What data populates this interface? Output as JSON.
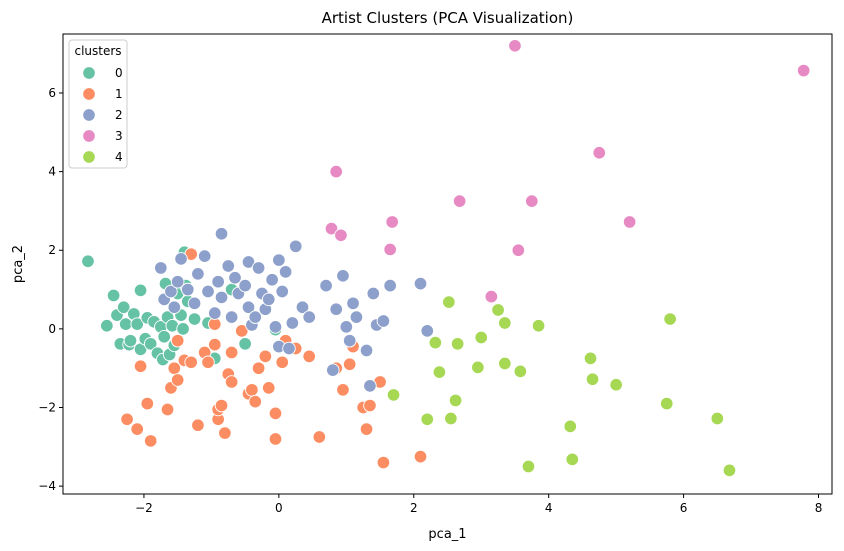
{
  "chart_data": {
    "type": "scatter",
    "title": "Artist Clusters (PCA Visualization)",
    "xlabel": "pca_1",
    "ylabel": "pca_2",
    "xlim": [
      -3.2,
      8.2
    ],
    "ylim": [
      -4.2,
      7.5
    ],
    "x_ticks": [
      -2,
      0,
      2,
      4,
      6,
      8
    ],
    "y_ticks": [
      -4,
      -2,
      0,
      2,
      4,
      6
    ],
    "x_tick_labels": [
      "−2",
      "0",
      "2",
      "4",
      "6",
      "8"
    ],
    "y_tick_labels": [
      "−4",
      "−2",
      "0",
      "2",
      "4",
      "6"
    ],
    "grid": false,
    "legend": {
      "title": "clusters",
      "position": "top-left"
    },
    "series": [
      {
        "name": "0",
        "color": "#66c2a5",
        "points": [
          [
            -2.83,
            1.72
          ],
          [
            -2.55,
            0.08
          ],
          [
            -2.45,
            0.85
          ],
          [
            -2.4,
            0.35
          ],
          [
            -2.35,
            -0.38
          ],
          [
            -2.3,
            0.55
          ],
          [
            -2.27,
            0.12
          ],
          [
            -2.22,
            -0.4
          ],
          [
            -2.2,
            -0.3
          ],
          [
            -2.15,
            0.38
          ],
          [
            -2.1,
            0.12
          ],
          [
            -2.05,
            -0.52
          ],
          [
            -2.05,
            0.98
          ],
          [
            -1.98,
            -0.25
          ],
          [
            -1.95,
            0.28
          ],
          [
            -1.9,
            -0.38
          ],
          [
            -1.85,
            0.18
          ],
          [
            -1.8,
            -0.62
          ],
          [
            -1.75,
            0.05
          ],
          [
            -1.72,
            -0.78
          ],
          [
            -1.7,
            -0.2
          ],
          [
            -1.68,
            1.15
          ],
          [
            -1.65,
            0.3
          ],
          [
            -1.62,
            -0.65
          ],
          [
            -1.58,
            0.08
          ],
          [
            -1.55,
            -0.42
          ],
          [
            -1.5,
            0.9
          ],
          [
            -1.45,
            0.35
          ],
          [
            -1.42,
            0.0
          ],
          [
            -1.4,
            1.95
          ],
          [
            -1.38,
            1.1
          ],
          [
            -1.35,
            0.7
          ],
          [
            -1.25,
            0.25
          ],
          [
            -1.05,
            0.15
          ],
          [
            -0.95,
            -0.75
          ],
          [
            -0.7,
            1.0
          ],
          [
            -0.5,
            -0.38
          ],
          [
            -0.05,
            -0.02
          ]
        ]
      },
      {
        "name": "1",
        "color": "#fc8d62",
        "points": [
          [
            -2.1,
            -2.55
          ],
          [
            -2.05,
            -0.95
          ],
          [
            -1.95,
            -1.9
          ],
          [
            -1.9,
            -2.85
          ],
          [
            -1.65,
            -2.05
          ],
          [
            -1.6,
            -1.5
          ],
          [
            -1.55,
            -1.0
          ],
          [
            -1.5,
            -0.3
          ],
          [
            -1.5,
            -1.3
          ],
          [
            -1.4,
            -0.8
          ],
          [
            -1.3,
            -0.85
          ],
          [
            -1.2,
            -2.45
          ],
          [
            -1.1,
            -0.6
          ],
          [
            -1.05,
            -0.85
          ],
          [
            -0.95,
            -0.4
          ],
          [
            -0.95,
            0.12
          ],
          [
            -0.9,
            -2.3
          ],
          [
            -0.9,
            -2.05
          ],
          [
            -0.85,
            -1.95
          ],
          [
            -0.8,
            -2.65
          ],
          [
            -0.75,
            -1.15
          ],
          [
            -0.7,
            -0.6
          ],
          [
            -0.7,
            -1.35
          ],
          [
            -0.55,
            -0.05
          ],
          [
            -0.45,
            -1.65
          ],
          [
            -0.4,
            -1.55
          ],
          [
            -0.35,
            -1.85
          ],
          [
            -0.3,
            -1.0
          ],
          [
            -0.2,
            -0.7
          ],
          [
            -0.15,
            -1.5
          ],
          [
            -0.05,
            -2.15
          ],
          [
            -0.05,
            -2.8
          ],
          [
            0.05,
            -0.85
          ],
          [
            0.1,
            -0.3
          ],
          [
            0.25,
            -0.5
          ],
          [
            0.45,
            -0.7
          ],
          [
            0.6,
            -2.75
          ],
          [
            0.85,
            -1.0
          ],
          [
            0.95,
            -1.55
          ],
          [
            1.05,
            -0.9
          ],
          [
            1.1,
            -0.45
          ],
          [
            1.25,
            -2.0
          ],
          [
            1.3,
            -2.55
          ],
          [
            1.35,
            -1.95
          ],
          [
            1.5,
            -1.35
          ],
          [
            1.55,
            -3.4
          ],
          [
            2.1,
            -3.25
          ],
          [
            -2.25,
            -2.3
          ],
          [
            -1.3,
            1.9
          ]
        ]
      },
      {
        "name": "2",
        "color": "#8da0cb",
        "points": [
          [
            -1.75,
            1.55
          ],
          [
            -1.7,
            0.75
          ],
          [
            -1.6,
            0.95
          ],
          [
            -1.5,
            1.2
          ],
          [
            -1.45,
            1.78
          ],
          [
            -1.35,
            1.0
          ],
          [
            -1.25,
            0.65
          ],
          [
            -1.2,
            1.4
          ],
          [
            -1.1,
            1.85
          ],
          [
            -1.05,
            0.95
          ],
          [
            -0.95,
            0.4
          ],
          [
            -0.9,
            1.2
          ],
          [
            -0.85,
            0.8
          ],
          [
            -0.85,
            2.42
          ],
          [
            -0.75,
            1.6
          ],
          [
            -0.7,
            0.3
          ],
          [
            -0.65,
            1.3
          ],
          [
            -0.6,
            0.9
          ],
          [
            -0.5,
            1.1
          ],
          [
            -0.45,
            0.55
          ],
          [
            -0.45,
            1.7
          ],
          [
            -0.4,
            0.1
          ],
          [
            -0.35,
            0.3
          ],
          [
            -0.3,
            1.55
          ],
          [
            -0.25,
            0.9
          ],
          [
            -0.2,
            0.5
          ],
          [
            -0.15,
            0.75
          ],
          [
            -0.1,
            1.25
          ],
          [
            -0.05,
            0.05
          ],
          [
            0.0,
            -0.45
          ],
          [
            0.05,
            0.95
          ],
          [
            0.1,
            1.45
          ],
          [
            0.15,
            -0.5
          ],
          [
            0.2,
            0.15
          ],
          [
            0.25,
            2.1
          ],
          [
            0.35,
            0.55
          ],
          [
            0.45,
            0.3
          ],
          [
            0.7,
            1.1
          ],
          [
            0.8,
            -1.05
          ],
          [
            0.85,
            0.5
          ],
          [
            0.95,
            1.35
          ],
          [
            1.0,
            0.05
          ],
          [
            1.05,
            -0.3
          ],
          [
            1.1,
            0.65
          ],
          [
            1.15,
            0.3
          ],
          [
            1.3,
            -0.55
          ],
          [
            1.35,
            -1.45
          ],
          [
            1.4,
            0.9
          ],
          [
            1.45,
            0.1
          ],
          [
            1.55,
            0.2
          ],
          [
            1.65,
            1.1
          ],
          [
            2.1,
            1.15
          ],
          [
            2.2,
            -0.05
          ],
          [
            0.0,
            1.75
          ],
          [
            -1.55,
            0.55
          ]
        ]
      },
      {
        "name": "3",
        "color": "#e78ac3",
        "points": [
          [
            0.85,
            4.0
          ],
          [
            0.78,
            2.55
          ],
          [
            0.92,
            2.38
          ],
          [
            1.65,
            2.02
          ],
          [
            1.68,
            2.72
          ],
          [
            2.68,
            3.25
          ],
          [
            3.15,
            0.82
          ],
          [
            3.5,
            7.2
          ],
          [
            3.55,
            2.0
          ],
          [
            3.75,
            3.25
          ],
          [
            4.75,
            4.48
          ],
          [
            5.2,
            2.72
          ],
          [
            7.78,
            6.57
          ]
        ]
      },
      {
        "name": "4",
        "color": "#a6d854",
        "points": [
          [
            1.7,
            -1.68
          ],
          [
            2.2,
            -2.3
          ],
          [
            2.32,
            -0.35
          ],
          [
            2.38,
            -1.1
          ],
          [
            2.52,
            0.68
          ],
          [
            2.55,
            -2.28
          ],
          [
            2.62,
            -1.82
          ],
          [
            2.65,
            -0.38
          ],
          [
            2.95,
            -0.98
          ],
          [
            3.0,
            -0.22
          ],
          [
            3.25,
            0.48
          ],
          [
            3.35,
            0.15
          ],
          [
            3.35,
            -0.88
          ],
          [
            3.58,
            -1.08
          ],
          [
            3.7,
            -3.5
          ],
          [
            3.85,
            0.08
          ],
          [
            4.32,
            -2.48
          ],
          [
            4.35,
            -3.32
          ],
          [
            4.62,
            -0.75
          ],
          [
            4.65,
            -1.28
          ],
          [
            5.0,
            -1.42
          ],
          [
            5.75,
            -1.9
          ],
          [
            5.8,
            0.25
          ],
          [
            6.5,
            -2.28
          ],
          [
            6.68,
            -3.6
          ]
        ]
      }
    ]
  }
}
